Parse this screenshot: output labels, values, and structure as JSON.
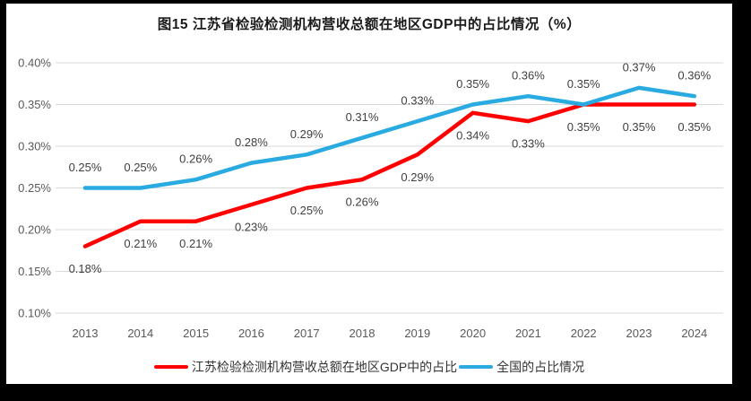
{
  "page": {
    "frame_color": "#000000",
    "background_color": "#ffffff"
  },
  "chart_data": {
    "type": "line",
    "title": "图15  江苏省检验检测机构营收总额在地区GDP中的占比情况（%）",
    "categories": [
      "2013",
      "2014",
      "2015",
      "2016",
      "2017",
      "2018",
      "2019",
      "2020",
      "2021",
      "2022",
      "2023",
      "2024"
    ],
    "series": [
      {
        "name": "江苏检验检测机构营收总额在地区GDP中的占比",
        "color": "#FF0000",
        "values": [
          0.18,
          0.21,
          0.21,
          0.23,
          0.25,
          0.26,
          0.29,
          0.34,
          0.33,
          0.35,
          0.35,
          0.35
        ],
        "labels": [
          "0.18%",
          "0.21%",
          "0.21%",
          "0.23%",
          "0.25%",
          "0.26%",
          "0.29%",
          "0.34%",
          "0.33%",
          "0.35%",
          "0.35%",
          "0.35%"
        ],
        "label_position": "below"
      },
      {
        "name": "全国的占比情况",
        "color": "#29ABE2",
        "values": [
          0.25,
          0.25,
          0.26,
          0.28,
          0.29,
          0.31,
          0.33,
          0.35,
          0.36,
          0.35,
          0.37,
          0.36
        ],
        "labels": [
          "0.25%",
          "0.25%",
          "0.26%",
          "0.28%",
          "0.29%",
          "0.31%",
          "0.33%",
          "0.35%",
          "0.36%",
          "0.35%",
          "0.37%",
          "0.36%"
        ],
        "label_position": "above"
      }
    ],
    "xlabel": "",
    "ylabel": "",
    "ylim": [
      0.1,
      0.4
    ],
    "ytick_step": 0.05,
    "ytick_labels": [
      "0.40%",
      "0.35%",
      "0.30%",
      "0.25%",
      "0.20%",
      "0.15%",
      "0.10%"
    ],
    "grid": true,
    "gridline_color": "#d9d9d9",
    "legend_position": "bottom"
  }
}
